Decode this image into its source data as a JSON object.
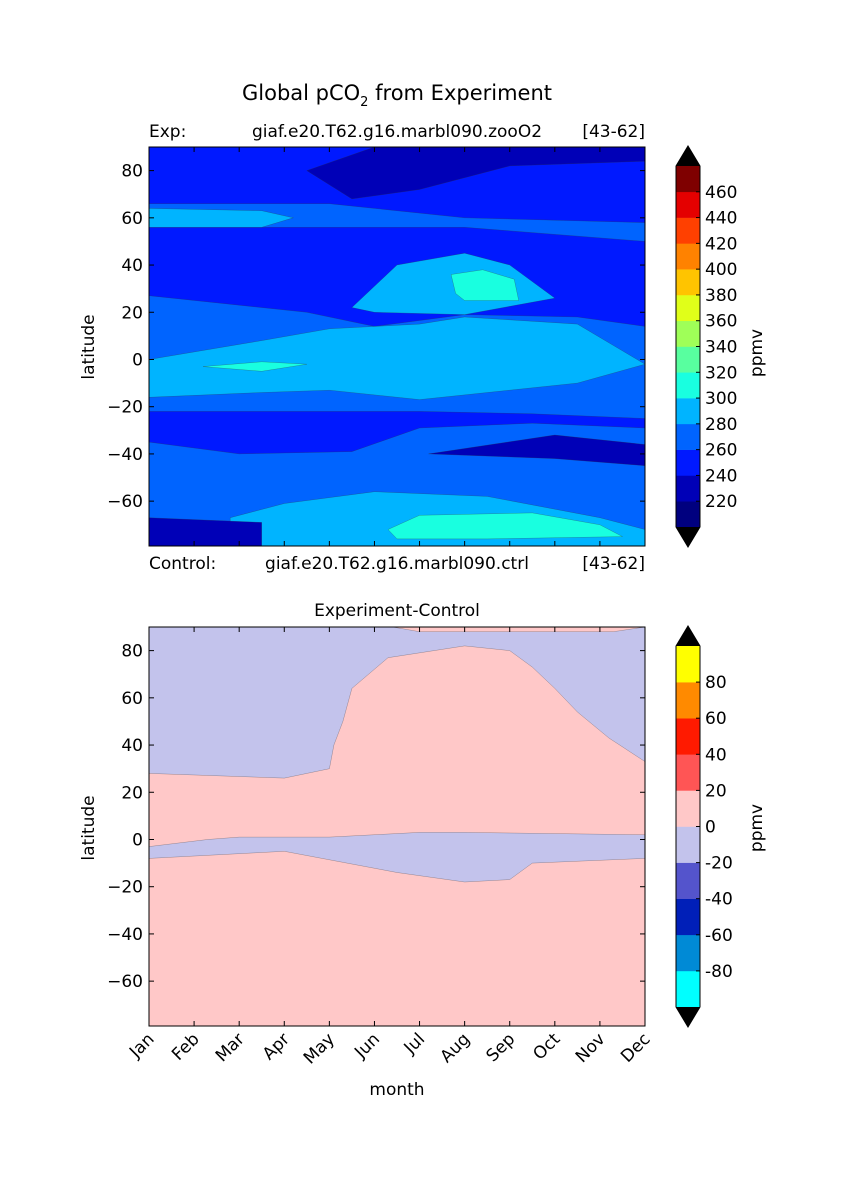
{
  "figure": {
    "title_main": "Global pCO",
    "title_sub": "2",
    "title_rest": " from Experiment"
  },
  "top_header": {
    "label": "Exp:",
    "case": "giaf.e20.T62.g16.marbl090.zooO2",
    "years": "[43-62]"
  },
  "bottom_header": {
    "label": "Control:",
    "case": "giaf.e20.T62.g16.marbl090.ctrl",
    "years": "[43-62]"
  },
  "colors": {
    "top_levels": [
      "#00007f",
      "#0000b7",
      "#0019ff",
      "#0064ff",
      "#00b4ff",
      "#19ffe0",
      "#58ff9f",
      "#9fff58",
      "#e0ff19",
      "#ffc400",
      "#ff8200",
      "#ff4000",
      "#e40000",
      "#7f0000"
    ],
    "bottom_levels": [
      "#00ffff",
      "#008ad6",
      "#001fb8",
      "#5454cc",
      "#c3c3ec",
      "#ffc8c8",
      "#ff5555",
      "#ff1a00",
      "#ff8a00",
      "#ffff00"
    ],
    "arrow": "#000000"
  },
  "chart_data": [
    {
      "type": "contour",
      "title": "",
      "xlabel": "",
      "ylabel": "latitude",
      "xlim": [
        0,
        11
      ],
      "ylim": [
        -79,
        90
      ],
      "yticks": [
        -60,
        -40,
        -20,
        0,
        20,
        40,
        60,
        80
      ],
      "ytick_labels": [
        "−60",
        "−40",
        "−20",
        "0",
        "20",
        "40",
        "60",
        "80"
      ],
      "colorbar": {
        "label": "ppmv",
        "levels": [
          200,
          220,
          240,
          260,
          280,
          300,
          320,
          340,
          360,
          380,
          400,
          420,
          440,
          460,
          480
        ],
        "tick_values": [
          220,
          240,
          260,
          280,
          300,
          320,
          340,
          360,
          380,
          400,
          420,
          440,
          460
        ],
        "extend": "both"
      },
      "regions": [
        {
          "value": 250,
          "points": [
            [
              0,
              -79
            ],
            [
              11,
              -79
            ],
            [
              11,
              90
            ],
            [
              0,
              90
            ]
          ]
        },
        {
          "value": 270,
          "points": [
            [
              0,
              -79
            ],
            [
              0,
              -35
            ],
            [
              2,
              -40
            ],
            [
              4.5,
              -39
            ],
            [
              6,
              -29
            ],
            [
              8.5,
              -27
            ],
            [
              11,
              -29
            ],
            [
              11,
              -79
            ]
          ]
        },
        {
          "value": 270,
          "points": [
            [
              0,
              -22
            ],
            [
              0,
              27
            ],
            [
              3.5,
              20
            ],
            [
              5,
              14
            ],
            [
              7,
              19
            ],
            [
              9.5,
              18
            ],
            [
              11,
              14
            ],
            [
              11,
              -25
            ],
            [
              8.5,
              -23
            ],
            [
              6,
              -22
            ],
            [
              4,
              -22
            ],
            [
              2.5,
              -22
            ]
          ]
        },
        {
          "value": 270,
          "points": [
            [
              0,
              66
            ],
            [
              4,
              66
            ],
            [
              7,
              60
            ],
            [
              11,
              58
            ],
            [
              11,
              50
            ],
            [
              7,
              56
            ],
            [
              4,
              56
            ],
            [
              0,
              56
            ]
          ]
        },
        {
          "value": 290,
          "points": [
            [
              1.8,
              -79
            ],
            [
              1.8,
              -67
            ],
            [
              3,
              -61
            ],
            [
              5,
              -56
            ],
            [
              7.5,
              -58
            ],
            [
              10,
              -67
            ],
            [
              11,
              -72
            ],
            [
              11,
              -79
            ]
          ]
        },
        {
          "value": 290,
          "points": [
            [
              0,
              0
            ],
            [
              2.5,
              8
            ],
            [
              4,
              13
            ],
            [
              6,
              15
            ],
            [
              7,
              18
            ],
            [
              9.5,
              15
            ],
            [
              11,
              -2
            ],
            [
              9.5,
              -10
            ],
            [
              6,
              -17
            ],
            [
              4,
              -13
            ],
            [
              2.5,
              -14
            ],
            [
              0,
              -16
            ]
          ]
        },
        {
          "value": 290,
          "points": [
            [
              0,
              56
            ],
            [
              2.5,
              56
            ],
            [
              3.2,
              60
            ],
            [
              2.5,
              63
            ],
            [
              0,
              64
            ]
          ]
        },
        {
          "value": 290,
          "points": [
            [
              4.5,
              22
            ],
            [
              5.5,
              40
            ],
            [
              7,
              45
            ],
            [
              8,
              40
            ],
            [
              9,
              26
            ],
            [
              7,
              19
            ],
            [
              5,
              20
            ]
          ]
        },
        {
          "value": 310,
          "points": [
            [
              5.3,
              -72
            ],
            [
              6,
              -66
            ],
            [
              8.5,
              -65
            ],
            [
              10,
              -70
            ],
            [
              10.5,
              -75
            ],
            [
              7.5,
              -76
            ],
            [
              5.5,
              -76
            ]
          ]
        },
        {
          "value": 310,
          "points": [
            [
              1.2,
              -3
            ],
            [
              2.5,
              -1
            ],
            [
              3.5,
              -2
            ],
            [
              2.5,
              -5
            ]
          ]
        },
        {
          "value": 310,
          "points": [
            [
              6.8,
              28
            ],
            [
              6.7,
              36
            ],
            [
              7.4,
              38
            ],
            [
              8.1,
              34
            ],
            [
              8.2,
              25
            ],
            [
              7,
              25
            ]
          ]
        },
        {
          "value": 230,
          "points": [
            [
              3.5,
              80
            ],
            [
              5,
              90
            ],
            [
              11,
              90
            ],
            [
              11,
              84
            ],
            [
              8,
              82
            ],
            [
              6,
              72
            ],
            [
              4.5,
              68
            ]
          ]
        },
        {
          "value": 230,
          "points": [
            [
              0,
              -79
            ],
            [
              0,
              -67
            ],
            [
              2.5,
              -69
            ],
            [
              2.5,
              -79
            ]
          ]
        },
        {
          "value": 230,
          "points": [
            [
              6.2,
              -40
            ],
            [
              9,
              -32
            ],
            [
              11,
              -36
            ],
            [
              11,
              -45
            ],
            [
              9,
              -42
            ]
          ]
        }
      ]
    },
    {
      "type": "contour",
      "title": "Experiment-Control",
      "xlabel": "month",
      "ylabel": "latitude",
      "xlim": [
        0,
        11
      ],
      "ylim": [
        -79,
        90
      ],
      "x_categories": [
        "Jan",
        "Feb",
        "Mar",
        "Apr",
        "May",
        "Jun",
        "Jul",
        "Aug",
        "Sep",
        "Oct",
        "Nov",
        "Dec"
      ],
      "yticks": [
        -60,
        -40,
        -20,
        0,
        20,
        40,
        60,
        80
      ],
      "ytick_labels": [
        "−60",
        "−40",
        "−20",
        "0",
        "20",
        "40",
        "60",
        "80"
      ],
      "colorbar": {
        "label": "ppmv",
        "levels": [
          -100,
          -80,
          -60,
          -40,
          -20,
          0,
          20,
          40,
          60,
          80,
          100
        ],
        "tick_values": [
          -80,
          -60,
          -40,
          -20,
          0,
          20,
          40,
          60,
          80
        ],
        "extend": "both"
      },
      "regions": [
        {
          "value": -10,
          "points": [
            [
              0,
              -79
            ],
            [
              11,
              -79
            ],
            [
              11,
              90
            ],
            [
              0,
              90
            ]
          ]
        },
        {
          "value": 10,
          "points": [
            [
              0,
              28
            ],
            [
              3,
              26
            ],
            [
              4,
              30
            ],
            [
              4.1,
              40
            ],
            [
              4.3,
              50
            ],
            [
              4.5,
              64
            ],
            [
              5.3,
              77
            ],
            [
              7,
              82
            ],
            [
              8,
              80
            ],
            [
              8.5,
              73
            ],
            [
              9,
              64
            ],
            [
              9.5,
              54
            ],
            [
              10.2,
              43
            ],
            [
              11,
              33
            ],
            [
              11,
              2
            ],
            [
              7,
              3
            ],
            [
              6,
              3
            ],
            [
              4,
              1
            ],
            [
              2,
              1
            ],
            [
              1.3,
              0
            ],
            [
              0,
              -3
            ]
          ]
        },
        {
          "value": 10,
          "points": [
            [
              0,
              -42
            ],
            [
              3,
              -40
            ],
            [
              5,
              -34
            ],
            [
              7,
              -29
            ],
            [
              9,
              -31
            ],
            [
              11,
              -40
            ],
            [
              11,
              -62
            ],
            [
              9,
              -57
            ],
            [
              7,
              -45
            ],
            [
              6,
              -44
            ],
            [
              4,
              -50
            ],
            [
              3,
              -58
            ],
            [
              3,
              -79
            ],
            [
              0,
              -79
            ]
          ]
        },
        {
          "value": 10,
          "points": [
            [
              0,
              -8
            ],
            [
              3,
              -5
            ],
            [
              5.5,
              -14
            ],
            [
              7,
              -18
            ],
            [
              8,
              -17
            ],
            [
              8.5,
              -10
            ],
            [
              11,
              -8
            ],
            [
              11,
              -79
            ],
            [
              0,
              -79
            ]
          ]
        },
        {
          "value": 10,
          "points": [
            [
              5.4,
              90
            ],
            [
              11,
              90
            ],
            [
              10.3,
              88
            ],
            [
              8,
              88
            ],
            [
              6,
              88
            ]
          ]
        }
      ]
    }
  ]
}
